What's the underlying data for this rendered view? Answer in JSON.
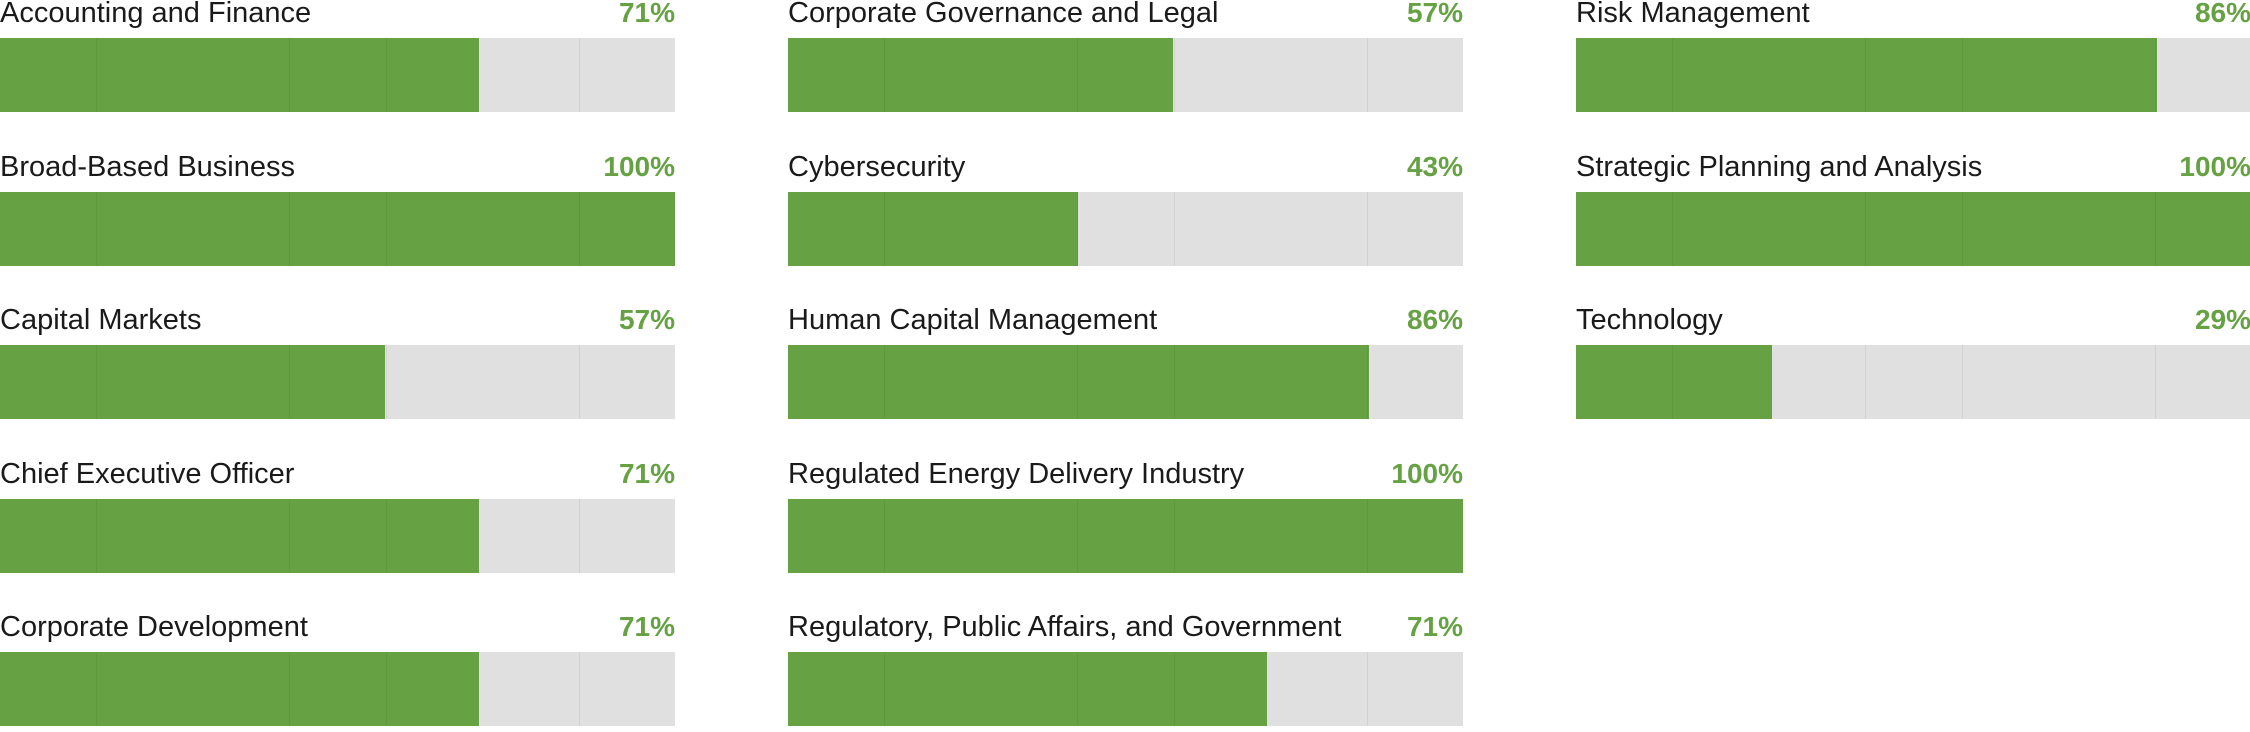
{
  "colors": {
    "fill": "#66a244",
    "track": "#e0e0e0",
    "label": "#1a1a1a",
    "percent": "#66a244"
  },
  "chart_data": {
    "type": "bar",
    "orientation": "horizontal",
    "layout": "three-column grid of progress bars",
    "xlim": [
      0,
      100
    ],
    "unit": "%",
    "columns": [
      [
        {
          "label": "Accounting and Finance",
          "value": 71,
          "percent_label": "71%"
        },
        {
          "label": "Broad-Based Business",
          "value": 100,
          "percent_label": "100%"
        },
        {
          "label": "Capital Markets",
          "value": 57,
          "percent_label": "57%"
        },
        {
          "label": "Chief Executive Officer",
          "value": 71,
          "percent_label": "71%"
        },
        {
          "label": "Corporate Development",
          "value": 71,
          "percent_label": "71%"
        }
      ],
      [
        {
          "label": "Corporate Governance and Legal",
          "value": 57,
          "percent_label": "57%"
        },
        {
          "label": "Cybersecurity",
          "value": 43,
          "percent_label": "43%"
        },
        {
          "label": "Human Capital Management",
          "value": 86,
          "percent_label": "86%"
        },
        {
          "label": "Regulated Energy Delivery Industry",
          "value": 100,
          "percent_label": "100%"
        },
        {
          "label": "Regulatory, Public Affairs, and Government",
          "value": 71,
          "percent_label": "71%"
        }
      ],
      [
        {
          "label": "Risk Management",
          "value": 86,
          "percent_label": "86%"
        },
        {
          "label": "Strategic Planning and Analysis",
          "value": 100,
          "percent_label": "100%"
        },
        {
          "label": "Technology",
          "value": 29,
          "percent_label": "29%"
        }
      ]
    ]
  }
}
